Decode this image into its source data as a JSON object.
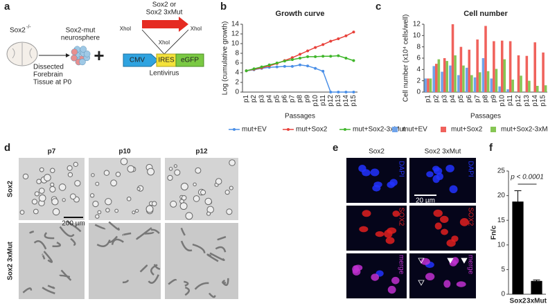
{
  "panel_labels": [
    "a",
    "b",
    "c",
    "d",
    "e",
    "f"
  ],
  "panel_a": {
    "mouse_label": "Sox2",
    "mouse_sup": "-/-",
    "neurosphere": [
      "Sox2-mut",
      "neurosphere"
    ],
    "dissection": [
      "Dissected",
      "Forebrain",
      "Tissue at P0"
    ],
    "plus": "+",
    "insert": [
      "Sox2 or",
      "Sox2 3xMut"
    ],
    "sites": [
      "XhoI",
      "XhoI",
      "XhoI"
    ],
    "elements": [
      "CMV",
      "IRES",
      "eGFP"
    ],
    "vector": "Lentivirus"
  },
  "chart_data": [
    {
      "type": "line",
      "title": "Growth curve",
      "x_label": "Passages",
      "y_label": "Log (cumulative growth)",
      "categories": [
        "p1",
        "p2",
        "p3",
        "p4",
        "p5",
        "p6",
        "p7",
        "p8",
        "p9",
        "p10",
        "p11",
        "p12",
        "p13",
        "p14",
        "p15"
      ],
      "series": [
        {
          "name": "mut+EV",
          "color": "#4a8fe7",
          "values": [
            4.4,
            4.6,
            4.9,
            5.1,
            5.2,
            5.3,
            5.3,
            5.6,
            5.4,
            4.9,
            4.3,
            0,
            0,
            0,
            0
          ]
        },
        {
          "name": "mut+Sox2",
          "color": "#e8413a",
          "values": [
            4.4,
            4.7,
            5.0,
            5.4,
            5.9,
            6.5,
            7.1,
            7.8,
            8.5,
            9.2,
            9.8,
            10.5,
            11.0,
            11.6,
            12.4
          ]
        },
        {
          "name": "mut+Sox2-3xMut",
          "color": "#3fb62a",
          "values": [
            4.4,
            4.8,
            5.2,
            5.6,
            6.0,
            6.4,
            6.7,
            7.0,
            7.3,
            7.3,
            7.4,
            7.4,
            7.5,
            7.0,
            6.5
          ]
        }
      ],
      "ylim": [
        0,
        14
      ],
      "yticks": [
        0,
        2,
        4,
        6,
        8,
        10,
        12,
        14
      ],
      "legend": "bottom"
    },
    {
      "type": "bar",
      "title": "Cell number",
      "x_label": "Passages",
      "y_label": "Cell number (x10⁴ cells/well)",
      "categories": [
        "p1",
        "p2",
        "p3",
        "p4",
        "p5",
        "p6",
        "p7",
        "p8",
        "p9",
        "p10",
        "p11",
        "p12",
        "p13",
        "p14",
        "p15"
      ],
      "series": [
        {
          "name": "mut+EV",
          "color": "#6fa3ea",
          "values": [
            2.4,
            4.6,
            3.6,
            4.7,
            3.0,
            4.3,
            2.6,
            6.0,
            2.4,
            1.0,
            0.5,
            0,
            0,
            0,
            0
          ]
        },
        {
          "name": "mut+Sox2",
          "color": "#f0625c",
          "values": [
            2.4,
            5.0,
            6.0,
            12.0,
            8.0,
            7.5,
            9.3,
            11.7,
            9.0,
            9.1,
            9.0,
            6.5,
            6.4,
            8.8,
            7.0
          ]
        },
        {
          "name": "mut+Sox2-3xMut",
          "color": "#86c654",
          "values": [
            2.4,
            5.8,
            5.5,
            6.5,
            4.7,
            3.0,
            3.5,
            3.7,
            4.1,
            5.8,
            2.2,
            2.9,
            2.0,
            1.1,
            1.2
          ]
        }
      ],
      "ylim": [
        0,
        12
      ],
      "yticks": [
        0,
        2,
        4,
        6,
        8,
        10,
        12
      ],
      "legend": "bottom"
    },
    {
      "type": "bar",
      "y_label": "Fn/c",
      "categories": [
        "Sox2",
        "3xMut"
      ],
      "values": [
        18.8,
        2.7
      ],
      "errors": [
        2.2,
        0.2
      ],
      "color": "#000000",
      "ylim": [
        0,
        25
      ],
      "yticks": [
        0,
        5,
        10,
        15,
        20,
        25
      ],
      "annotation": "p < 0.0001"
    }
  ],
  "panel_d": {
    "columns": [
      "p7",
      "p10",
      "p12"
    ],
    "rows": [
      "Sox2",
      "Sox2 3xMut"
    ],
    "scale_bar": "200 µm"
  },
  "panel_e": {
    "columns": [
      "Sox2",
      "Sox2 3xMut"
    ],
    "channels": [
      "DAPI",
      "SOX2",
      "merge"
    ],
    "scale_bar": "20 µm"
  }
}
